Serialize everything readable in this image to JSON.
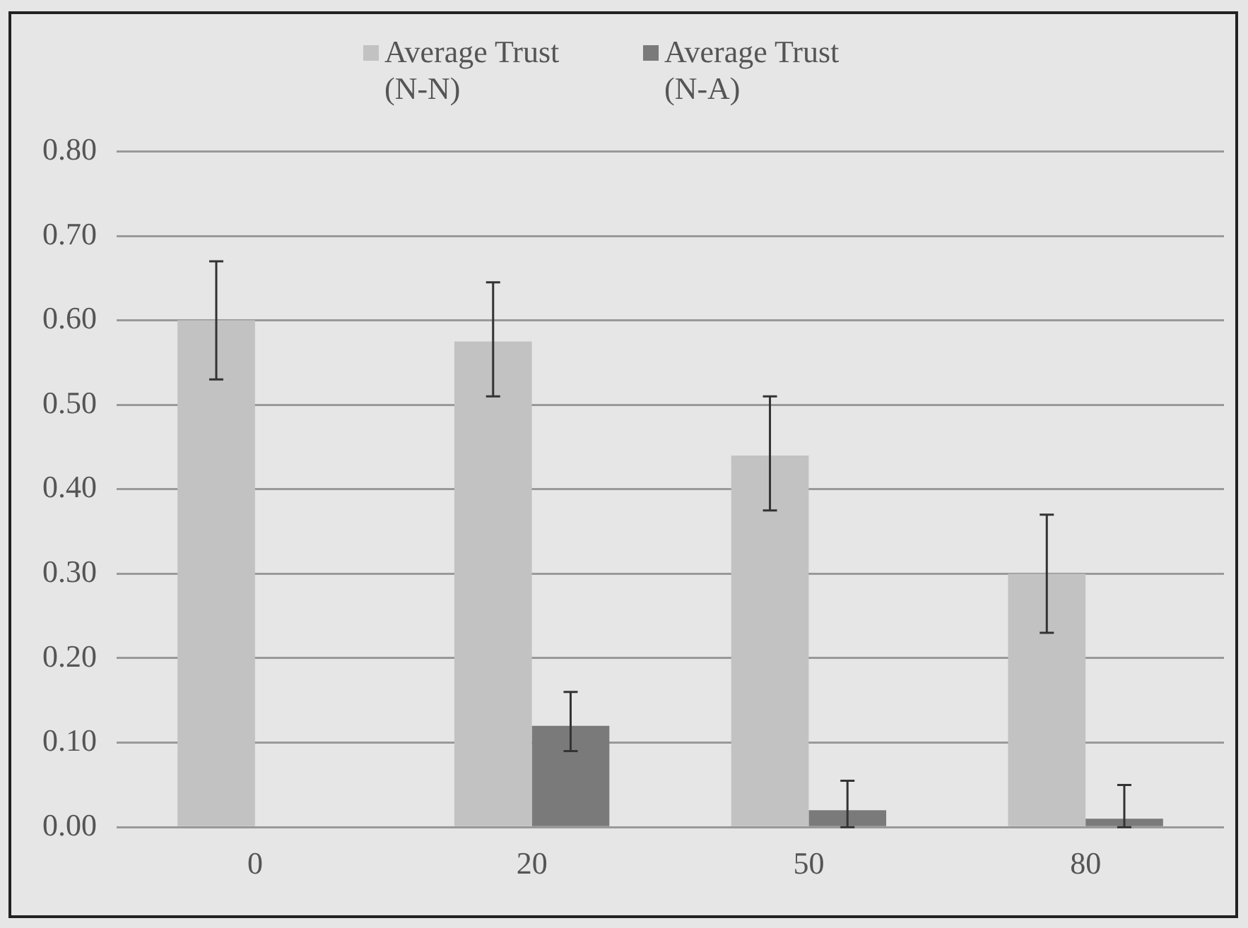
{
  "chart_data": {
    "type": "bar",
    "categories": [
      "0",
      "20",
      "50",
      "80"
    ],
    "series": [
      {
        "name": "Average Trust (N-N)",
        "color": "#c2c2c2",
        "values": [
          0.6,
          0.575,
          0.44,
          0.3
        ],
        "errors": [
          [
            0.53,
            0.67
          ],
          [
            0.51,
            0.645
          ],
          [
            0.375,
            0.51
          ],
          [
            0.23,
            0.37
          ]
        ]
      },
      {
        "name": "Average Trust (N-A)",
        "color": "#7a7a7a",
        "values": [
          null,
          0.12,
          0.02,
          0.01
        ],
        "errors": [
          null,
          [
            0.09,
            0.16
          ],
          [
            0,
            0.055
          ],
          [
            0,
            0.05
          ]
        ]
      }
    ],
    "ylim": [
      0,
      0.8
    ],
    "yticks": [
      {
        "value": 0,
        "label": "0.00"
      },
      {
        "value": 0.1,
        "label": "0.10"
      },
      {
        "value": 0.2,
        "label": "0.20"
      },
      {
        "value": 0.3,
        "label": "0.30"
      },
      {
        "value": 0.4,
        "label": "0.40"
      },
      {
        "value": 0.5,
        "label": "0.50"
      },
      {
        "value": 0.6,
        "label": "0.60"
      },
      {
        "value": 0.7,
        "label": "0.70"
      },
      {
        "value": 0.8,
        "label": "0.80"
      }
    ],
    "grid": "y",
    "legend": "top"
  }
}
